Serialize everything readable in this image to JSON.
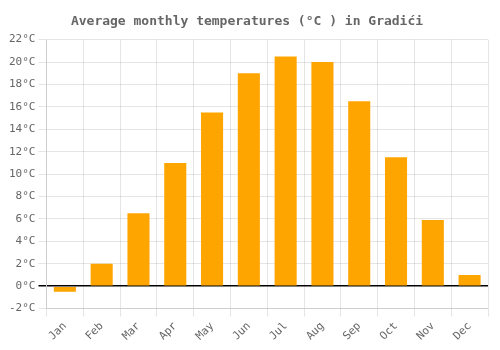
{
  "chart_data": {
    "type": "bar",
    "title": "Average monthly temperatures (°C ) in Gradići",
    "categories": [
      "Jan",
      "Feb",
      "Mar",
      "Apr",
      "May",
      "Jun",
      "Jul",
      "Aug",
      "Sep",
      "Oct",
      "Nov",
      "Dec"
    ],
    "values": [
      -0.5,
      2.0,
      6.5,
      11.0,
      15.5,
      19.0,
      20.5,
      20.0,
      16.5,
      11.5,
      5.9,
      1.0
    ],
    "color": "#FFA500",
    "ylim": [
      -2,
      22
    ],
    "yticks": [
      {
        "value": -2,
        "label": "-2°C"
      },
      {
        "value": 0,
        "label": "0°C"
      },
      {
        "value": 2,
        "label": "2°C"
      },
      {
        "value": 4,
        "label": "4°C"
      },
      {
        "value": 6,
        "label": "6°C"
      },
      {
        "value": 8,
        "label": "8°C"
      },
      {
        "value": 10,
        "label": "10°C"
      },
      {
        "value": 12,
        "label": "12°C"
      },
      {
        "value": 14,
        "label": "14°C"
      },
      {
        "value": 16,
        "label": "16°C"
      },
      {
        "value": 18,
        "label": "18°C"
      },
      {
        "value": 20,
        "label": "20°C"
      },
      {
        "value": 22,
        "label": "22°C"
      }
    ],
    "grid": true
  }
}
